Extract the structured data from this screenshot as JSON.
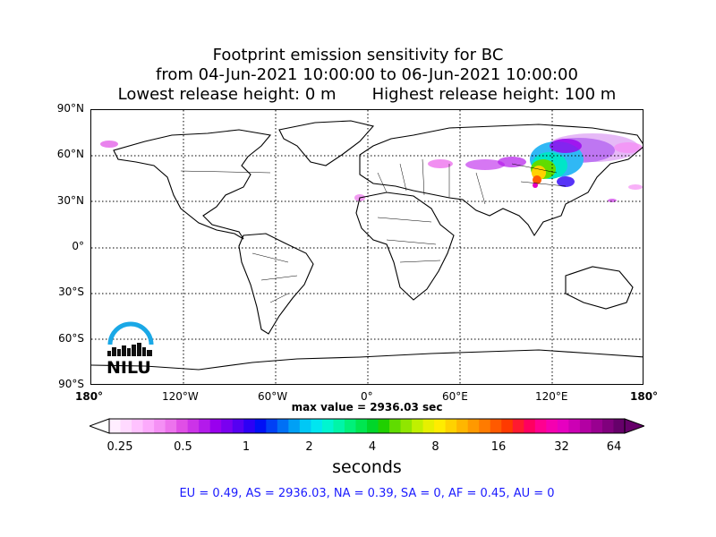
{
  "title": {
    "line1": "Footprint emission sensitivity for BC",
    "line2": "from 04-Jun-2021 10:00:00 to 06-Jun-2021 10:00:00",
    "line3": "Lowest release height: 0 m       Highest release height: 100 m"
  },
  "map": {
    "lat_labels": [
      "90°N",
      "60°N",
      "30°N",
      "0°",
      "30°S",
      "60°S",
      "90°S"
    ],
    "lon_labels": [
      "180°",
      "120°W",
      "60°W",
      "0°",
      "60°E",
      "120°E",
      "180°"
    ],
    "lat_range": [
      -90,
      90
    ],
    "lon_range": [
      -180,
      180
    ],
    "gridlines": "dotted",
    "max_value_text": "max value = 2936.03 sec"
  },
  "colorbar": {
    "tick_labels": [
      "0.25",
      "0.5",
      "1",
      "2",
      "4",
      "8",
      "16",
      "32",
      "64"
    ],
    "units": "seconds",
    "colors": [
      "#ffeeff",
      "#ffd9ff",
      "#ffc2ff",
      "#fcaafc",
      "#f590f5",
      "#ed73ed",
      "#e04fe6",
      "#cc33e8",
      "#b31aeb",
      "#9900ee",
      "#7a00f0",
      "#5500f2",
      "#2d00f5",
      "#0010f5",
      "#0040f5",
      "#0070f5",
      "#00a0f5",
      "#00c8f5",
      "#00e6f0",
      "#00f5d0",
      "#00f5a8",
      "#00f07a",
      "#00e650",
      "#00d62a",
      "#20d000",
      "#60dc00",
      "#90e600",
      "#c0f000",
      "#e6f000",
      "#ffec00",
      "#ffd200",
      "#ffb600",
      "#ff9900",
      "#ff7b00",
      "#ff5a00",
      "#ff3a00",
      "#ff1a30",
      "#ff0060",
      "#ff0090",
      "#f500b0",
      "#e600c0",
      "#cc00b4",
      "#b300a3",
      "#990090",
      "#80007d",
      "#66006a"
    ]
  },
  "region_summary": "EU = 0.49,  AS = 2936.03,  NA = 0.39,  SA = 0,  AF = 0.45,  AU = 0",
  "logo": {
    "text": "NILU",
    "arc_color": "#1aa8e6"
  }
}
